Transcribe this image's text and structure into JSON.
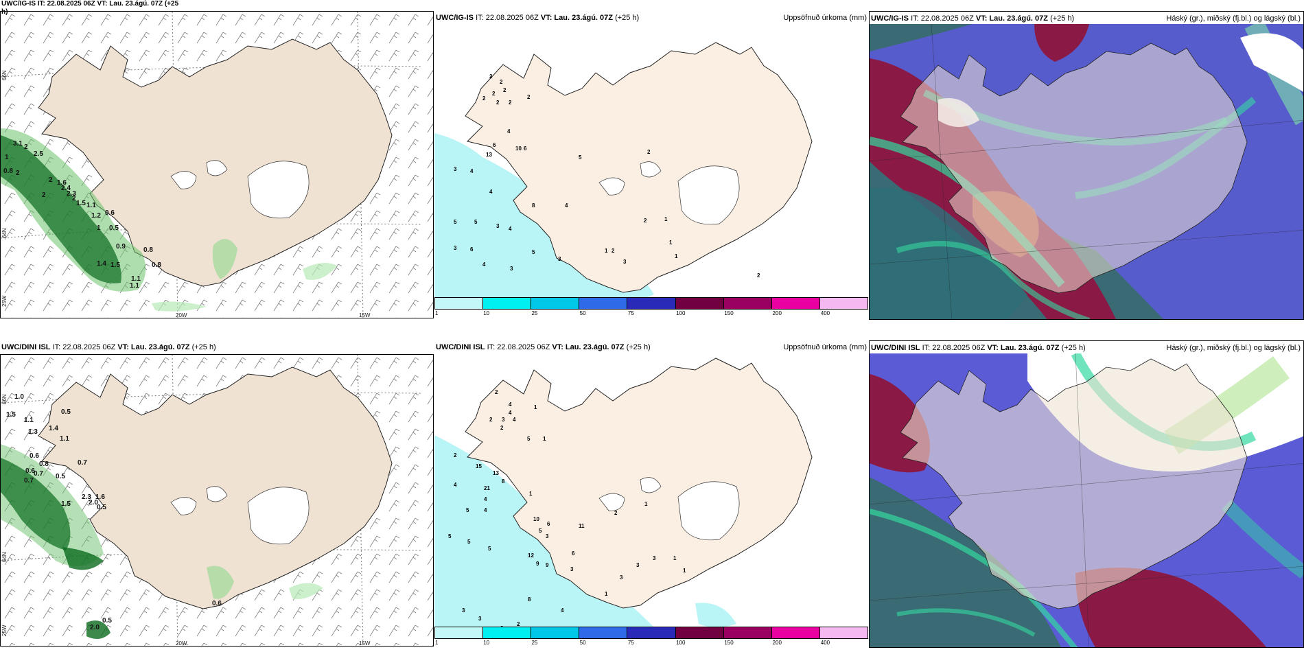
{
  "panels": {
    "top_wind": {
      "title": "UWC/IG-IS IT: 22.08.2025 06Z VT: Lau. 23.ágú. 07Z (+25 h)"
    },
    "top_precip": {
      "model": "UWC/IG-IS",
      "it": "IT: 22.08.2025 06Z",
      "vt": "VT: Lau. 23.ágú. 07Z",
      "lead": "(+25 h)",
      "field": "Uppsöfnuð úrkoma (mm)"
    },
    "top_cloud": {
      "model": "UWC/IG-IS",
      "it": "IT: 22.08.2025 06Z",
      "vt": "VT: Lau. 23.ágú. 07Z",
      "lead": "(+25 h)",
      "field": "Háský (gr.), miðský (fj.bl.) og lágský (bl.)"
    },
    "bot_wind": {
      "model": "UWC/DINI ISL",
      "it": "IT: 22.08.2025 06Z",
      "vt": "VT: Lau. 23.ágú. 07Z",
      "lead": "(+25 h)"
    },
    "bot_precip": {
      "model": "UWC/DINI ISL",
      "it": "IT: 22.08.2025 06Z",
      "vt": "VT: Lau. 23.ágú. 07Z",
      "lead": "(+25 h)",
      "field": "Uppsöfnuð úrkoma (mm)"
    },
    "bot_cloud": {
      "model": "UWC/DINI ISL",
      "it": "IT: 22.08.2025 06Z",
      "vt": "VT: Lau. 23.ágú. 07Z",
      "lead": "(+25 h)",
      "field": "Háský (gr.), miðský (fj.bl.) og lágský (bl.)"
    }
  },
  "axes": {
    "lat_66": "66N",
    "lat_64": "64N",
    "lon_25": "25W",
    "lon_20": "20W",
    "lon_15": "15W"
  },
  "colorbar": {
    "ticks": [
      "1",
      "10",
      "25",
      "50",
      "75",
      "100",
      "150",
      "200",
      "400"
    ],
    "colors": [
      "#c4f7f7",
      "#00f0f0",
      "#00c8e6",
      "#2f6ae8",
      "#2a2ab8",
      "#700040",
      "#9a0060",
      "#e800a0",
      "#f5b8f0"
    ]
  },
  "wind_labels_top": [
    "3.1",
    "2",
    "2.5",
    "1",
    "0.8",
    "2",
    "2",
    "1.6",
    "2",
    "2.4",
    "2.3",
    "2",
    "1.5",
    "1.1",
    "1.2",
    "0.6",
    "1",
    "0.5",
    "0.9",
    "0.8",
    "1.4",
    "1.5",
    "1.1",
    "1.1",
    "0.8"
  ],
  "wind_labels_bot": [
    "1.0",
    "1.5",
    "1.1",
    "0.5",
    "1.4",
    "1.3",
    "1.1",
    "0.6",
    "0.8",
    "0.6",
    "0.7",
    "0.7",
    "0.5",
    "0.7",
    "1.5",
    "2.3",
    "1.6",
    "2.0",
    "0.5",
    "0.5",
    "2.0",
    "0.6"
  ],
  "precip_labels_top": [
    "2",
    "2",
    "2",
    "2",
    "2",
    "2",
    "2",
    "2",
    "4",
    "6",
    "10",
    "6",
    "13",
    "5",
    "2",
    "3",
    "4",
    "4",
    "8",
    "4",
    "5",
    "5",
    "3",
    "4",
    "3",
    "6",
    "5",
    "3",
    "4",
    "3",
    "1",
    "2",
    "3",
    "2",
    "1",
    "1",
    "1",
    "2"
  ],
  "precip_labels_bot": [
    "2",
    "4",
    "2",
    "3",
    "4",
    "4",
    "2",
    "1",
    "5",
    "1",
    "2",
    "15",
    "13",
    "8",
    "4",
    "21",
    "5",
    "4",
    "4",
    "5",
    "5",
    "5",
    "1",
    "10",
    "6",
    "5",
    "3",
    "12",
    "9",
    "9",
    "3",
    "6",
    "11",
    "2",
    "1",
    "3",
    "1",
    "1",
    "3",
    "8",
    "4",
    "3",
    "3",
    "3",
    "2",
    "1",
    "1",
    "3"
  ]
}
